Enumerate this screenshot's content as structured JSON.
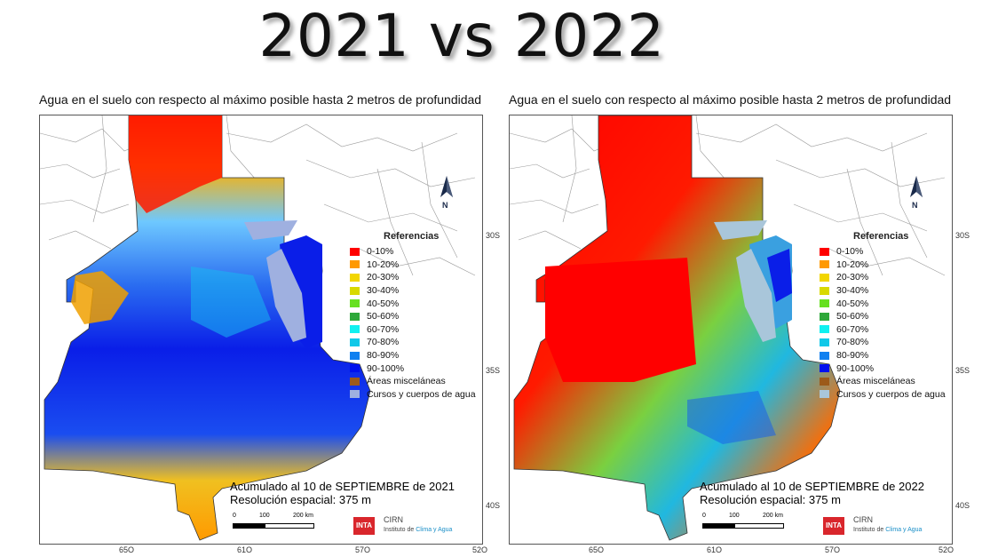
{
  "title": "2021 vs 2022",
  "panel_title": "Agua en el suelo con respecto al máximo posible hasta 2 metros de profundidad",
  "north_label": "N",
  "legend": {
    "title": "Referencias",
    "items": [
      {
        "label": "0-10%",
        "color": "#ff0000"
      },
      {
        "label": "10-20%",
        "color": "#ff9900"
      },
      {
        "label": "20-30%",
        "color": "#f2d600"
      },
      {
        "label": "30-40%",
        "color": "#d9d900"
      },
      {
        "label": "40-50%",
        "color": "#66e020"
      },
      {
        "label": "50-60%",
        "color": "#2ea83a"
      },
      {
        "label": "60-70%",
        "color": "#10f0f0"
      },
      {
        "label": "70-80%",
        "color": "#10c8e8"
      },
      {
        "label": "80-90%",
        "color": "#1080f0"
      },
      {
        "label": "90-100%",
        "color": "#0010ee"
      }
    ],
    "misc_label": "Áreas misceláneas",
    "misc_color": "#9c5a1a",
    "water_label": "Cursos y cuerpos de agua",
    "water_color_left": "#9fb0e0",
    "water_color_right": "#a9c6da"
  },
  "panels": [
    {
      "accumulated": "Acumulado al 10 de SEPTIEMBRE de 2021",
      "resolution": "Resolución espacial: 375 m"
    },
    {
      "accumulated": "Acumulado al 10 de SEPTIEMBRE de 2022",
      "resolution": "Resolución espacial: 375 m"
    }
  ],
  "scale": {
    "l0": "0",
    "l1": "100",
    "l2": "200 km"
  },
  "latitudes": [
    "30S",
    "35S",
    "40S"
  ],
  "longitudes": [
    "65O",
    "61O",
    "57O",
    "52O"
  ],
  "logo": {
    "inta": "INTA",
    "cirn": "CIRN",
    "institute_prefix": "Instituto de ",
    "institute_highlight": "Clima y Agua"
  }
}
